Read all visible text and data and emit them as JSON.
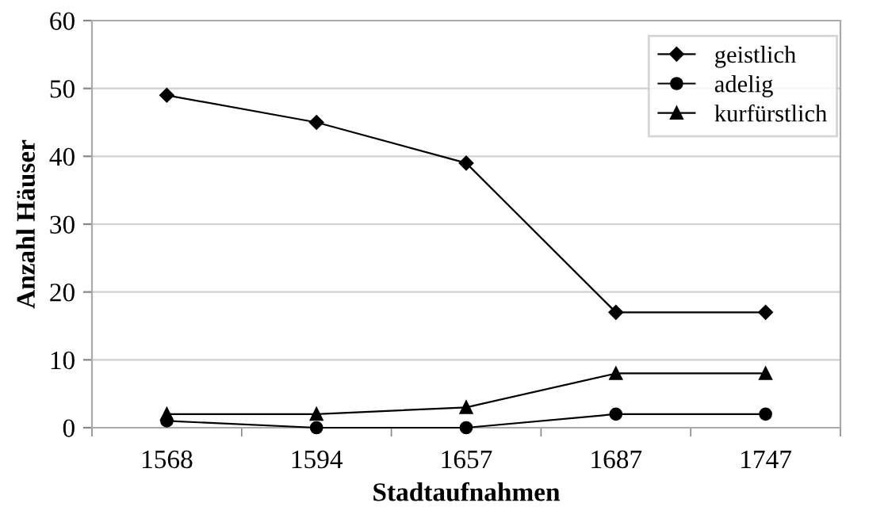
{
  "chart_data": {
    "type": "line",
    "xlabel": "Stadtaufnahmen",
    "ylabel": "Anzahl Häuser",
    "categories": [
      "1568",
      "1594",
      "1657",
      "1687",
      "1747"
    ],
    "series": [
      {
        "name": "geistlich",
        "color": "#000000",
        "values": [
          49,
          45,
          39,
          17,
          17
        ],
        "marker": "diamond"
      },
      {
        "name": "adelig",
        "color": "#000000",
        "values": [
          1,
          0,
          0,
          2,
          2
        ],
        "marker": "circle"
      },
      {
        "name": "kurfürstlich",
        "color": "#000000",
        "values": [
          2,
          2,
          3,
          8,
          8
        ],
        "marker": "triangle"
      }
    ],
    "ylim": [
      0,
      60
    ],
    "yticks": [
      0,
      10,
      20,
      30,
      40,
      50,
      60
    ],
    "grid": "y",
    "legend": "top right",
    "line_style": "solid"
  }
}
